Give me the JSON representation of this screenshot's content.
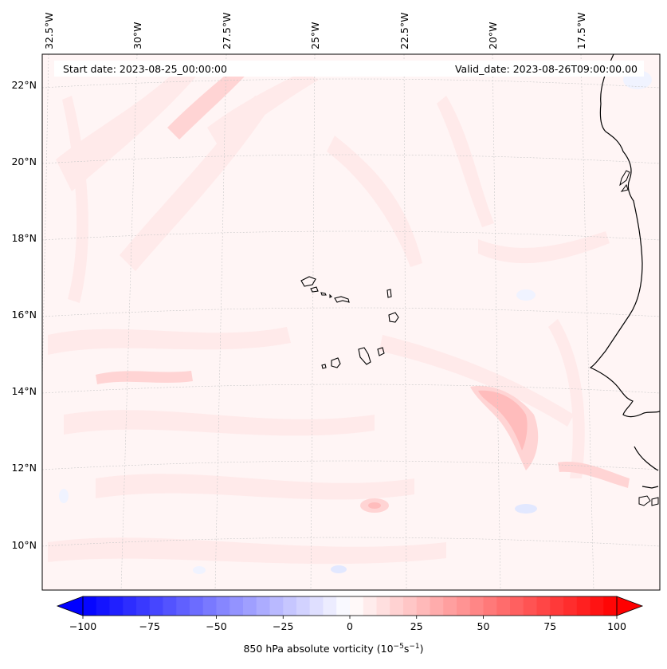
{
  "header": {
    "start_date": "Start date: 2023-08-25_00:00:00",
    "valid_date": "Valid_date: 2023-08-26T09:00:00.00"
  },
  "map": {
    "longitude_labels": [
      "32.5°W",
      "30°W",
      "27.5°W",
      "25°W",
      "22.5°W",
      "20°W",
      "17.5°W"
    ],
    "latitude_labels": [
      "22°N",
      "20°N",
      "18°N",
      "16°N",
      "14°N",
      "12°N",
      "10°N"
    ],
    "field_colors": {
      "weak_positive": "#ffeaea",
      "moderate_positive": "#ffd4d4",
      "stronger_positive": "#ffbcbc",
      "weak_negative": "#f0f3ff",
      "negative": "#e2e8ff",
      "coast": "#000000"
    }
  },
  "colorbar": {
    "ticks": [
      "−100",
      "−75",
      "−50",
      "−25",
      "0",
      "25",
      "50",
      "75",
      "100"
    ],
    "label_prefix": "850 hPa absolute vorticity (10",
    "label_exp1": "−5",
    "label_mid": "s",
    "label_exp2": "−1",
    "label_suffix": ")",
    "color_min": "#0000ff",
    "color_mid": "#ffffff",
    "color_max": "#ff0000"
  }
}
